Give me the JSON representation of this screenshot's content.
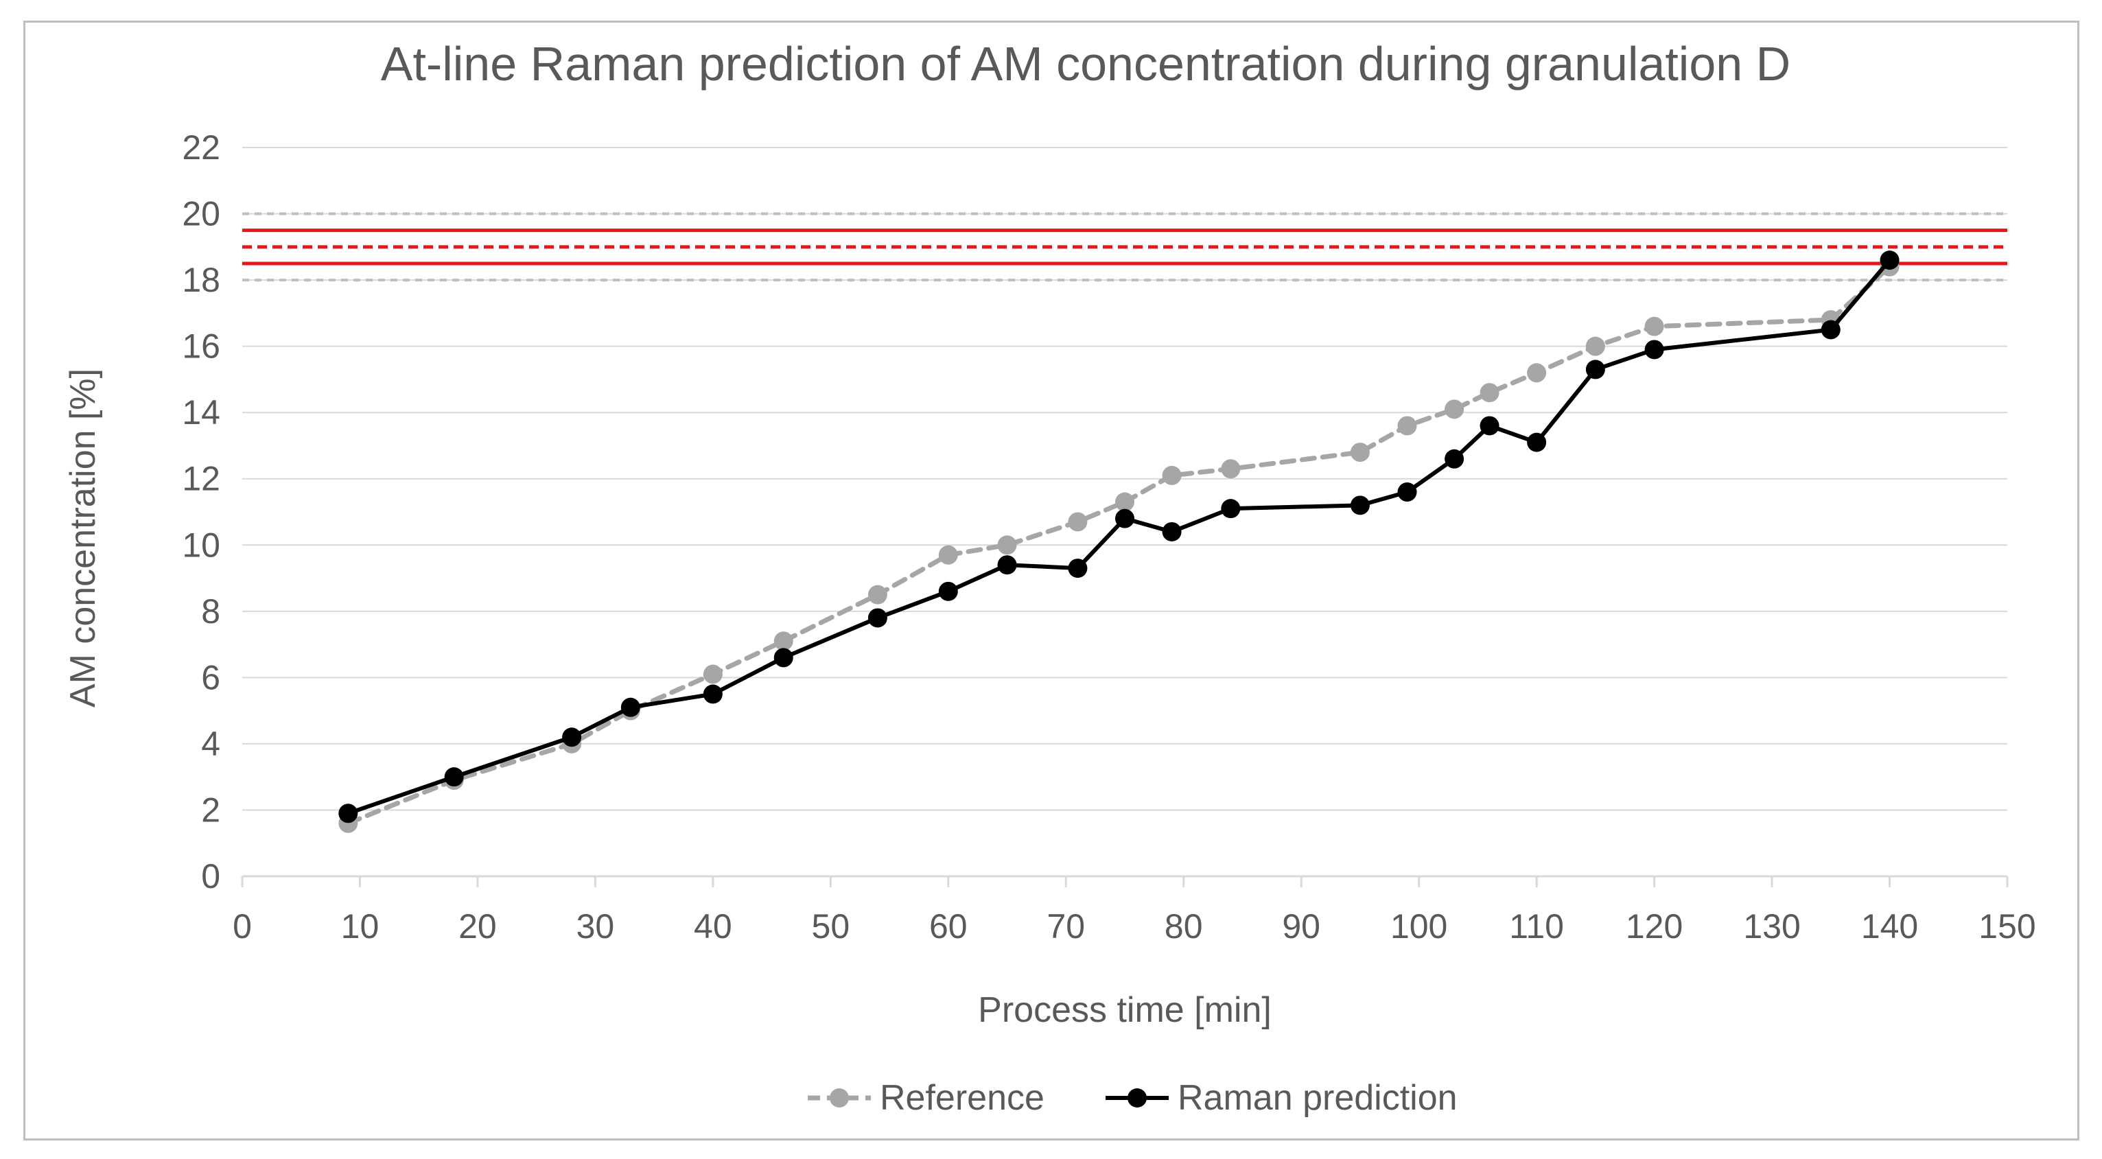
{
  "chart_data": {
    "type": "line",
    "title": "At-line Raman prediction of AM concentration during granulation D",
    "xlabel": "Process time [min]",
    "ylabel": "AM concentration [%]",
    "xlim": [
      0,
      150
    ],
    "ylim": [
      0,
      22
    ],
    "x_ticks": [
      0,
      10,
      20,
      30,
      40,
      50,
      60,
      70,
      80,
      90,
      100,
      110,
      120,
      130,
      140,
      150
    ],
    "y_ticks": [
      0,
      2,
      4,
      6,
      8,
      10,
      12,
      14,
      16,
      18,
      20,
      22
    ],
    "grid": "horizontal",
    "legend_position": "bottom",
    "series": [
      {
        "name": "Reference",
        "color": "#a6a6a6",
        "line_style": "dashed",
        "marker": "circle",
        "x": [
          9,
          18,
          28,
          33,
          40,
          46,
          54,
          60,
          65,
          71,
          75,
          79,
          84,
          95,
          99,
          103,
          106,
          110,
          115,
          120,
          135,
          140
        ],
        "y": [
          1.6,
          2.9,
          4.0,
          5.0,
          6.1,
          7.1,
          8.5,
          9.7,
          10.0,
          10.7,
          11.3,
          12.1,
          12.3,
          12.8,
          13.6,
          14.1,
          14.6,
          15.2,
          16.0,
          16.6,
          16.8,
          18.4
        ]
      },
      {
        "name": "Raman prediction",
        "color": "#000000",
        "line_style": "solid",
        "marker": "circle",
        "x": [
          9,
          18,
          28,
          33,
          40,
          46,
          54,
          60,
          65,
          71,
          75,
          79,
          84,
          95,
          99,
          103,
          106,
          110,
          115,
          120,
          135,
          140
        ],
        "y": [
          1.9,
          3.0,
          4.2,
          5.1,
          5.5,
          6.6,
          7.8,
          8.6,
          9.4,
          9.3,
          10.8,
          10.4,
          11.1,
          11.2,
          11.6,
          12.6,
          13.6,
          13.1,
          15.3,
          15.9,
          16.5,
          18.6
        ]
      }
    ],
    "reference_lines": [
      {
        "name": "outer-lower-limit",
        "y": 18.0,
        "color": "#bfbfbf",
        "style": "dashed"
      },
      {
        "name": "outer-upper-limit",
        "y": 20.0,
        "color": "#bfbfbf",
        "style": "dashed"
      },
      {
        "name": "inner-lower-limit",
        "y": 18.5,
        "color": "#e8161a",
        "style": "solid"
      },
      {
        "name": "inner-upper-limit",
        "y": 19.5,
        "color": "#e8161a",
        "style": "solid"
      },
      {
        "name": "target",
        "y": 19.0,
        "color": "#e8161a",
        "style": "dashed"
      }
    ]
  }
}
